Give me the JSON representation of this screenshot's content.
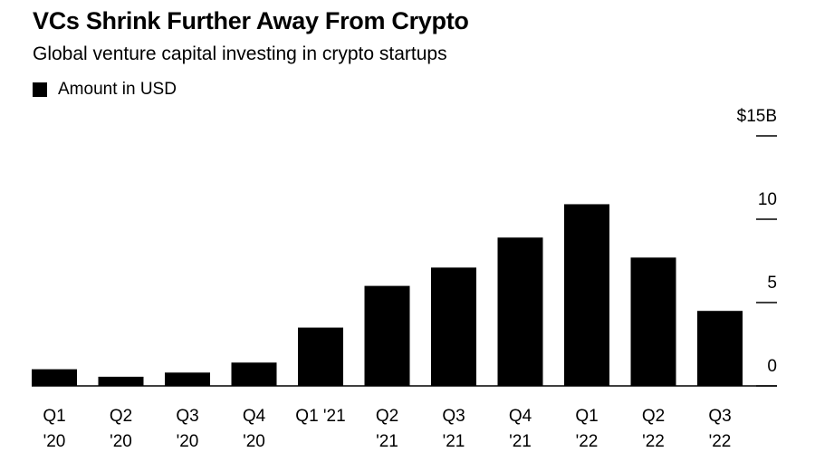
{
  "chart_data": {
    "type": "bar",
    "title": "VCs Shrink Further Away From Crypto",
    "subtitle": "Global venture capital investing in crypto startups",
    "categories": [
      "Q1\n'20",
      "Q2\n'20",
      "Q3\n'20",
      "Q4\n'20",
      "Q1 '21",
      "Q2\n'21",
      "Q3\n'21",
      "Q4\n'21",
      "Q1\n'22",
      "Q2\n'22",
      "Q3\n'22"
    ],
    "series": [
      {
        "name": "Amount in USD",
        "color": "#000000",
        "values": [
          1.0,
          0.55,
          0.8,
          1.4,
          3.5,
          6.0,
          7.1,
          8.9,
          10.9,
          7.7,
          4.5
        ]
      }
    ],
    "ylim": [
      0,
      15
    ],
    "yticks": [
      0,
      5,
      10,
      {
        "value": 15,
        "label": "$15B"
      }
    ],
    "legend": "top-left"
  }
}
